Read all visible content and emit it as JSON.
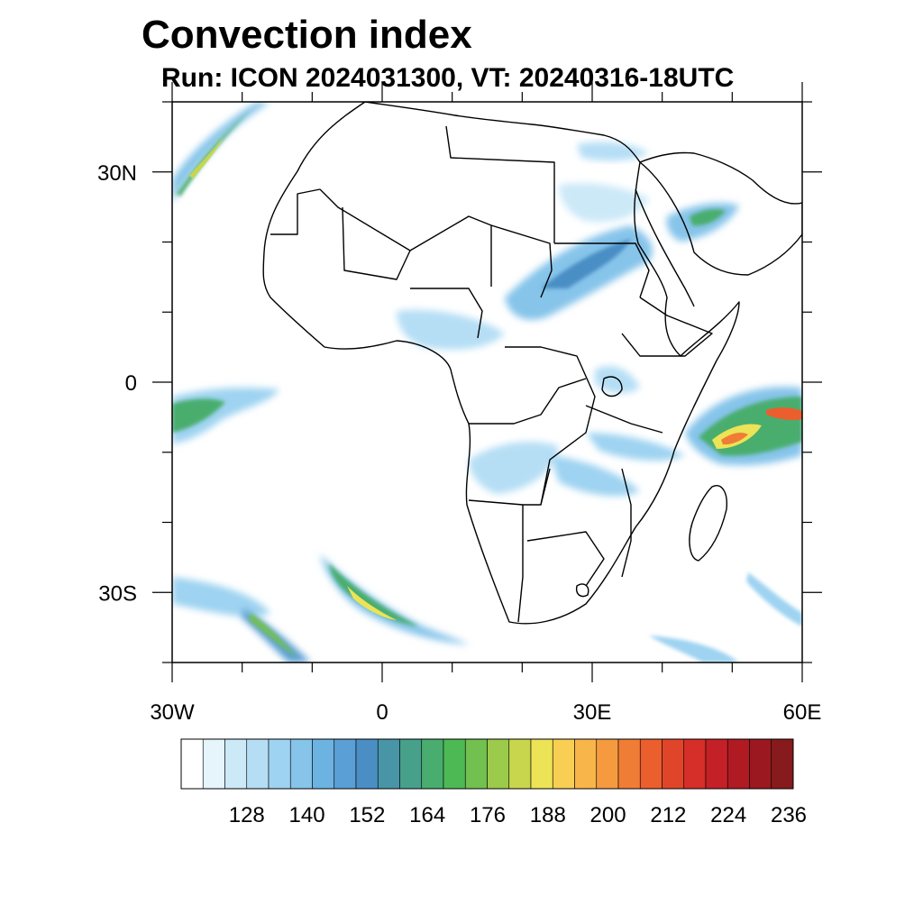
{
  "title": "Convection index",
  "subtitle": "Run: ICON 2024031300,  VT: 20240316-18UTC",
  "map": {
    "lon_range": [
      -30,
      60
    ],
    "lat_range": [
      -40,
      40
    ],
    "lon_labels": [
      {
        "lon": -30,
        "text": "30W"
      },
      {
        "lon": 0,
        "text": "0"
      },
      {
        "lon": 30,
        "text": "30E"
      },
      {
        "lon": 60,
        "text": "60E"
      }
    ],
    "lat_labels": [
      {
        "lat": 30,
        "text": "30N"
      },
      {
        "lat": 0,
        "text": "0"
      },
      {
        "lat": -30,
        "text": "30S"
      }
    ]
  },
  "colorbar": {
    "colors": [
      "#ffffff",
      "#e6f4fc",
      "#cce9f8",
      "#b5def5",
      "#9ed3f1",
      "#86c4ea",
      "#6db3e2",
      "#5a9fd5",
      "#4a8ec4",
      "#4895a8",
      "#47a08a",
      "#48ad6e",
      "#4db955",
      "#72c04f",
      "#9ccb4b",
      "#c7d64d",
      "#ece356",
      "#f8cf52",
      "#f8b54a",
      "#f59a3f",
      "#f07d35",
      "#ea5f2d",
      "#e04529",
      "#d62e28",
      "#c42027",
      "#b01a23",
      "#9b1820",
      "#871a1c"
    ],
    "labels": [
      "128",
      "140",
      "152",
      "164",
      "176",
      "188",
      "200",
      "212",
      "224",
      "236"
    ]
  }
}
